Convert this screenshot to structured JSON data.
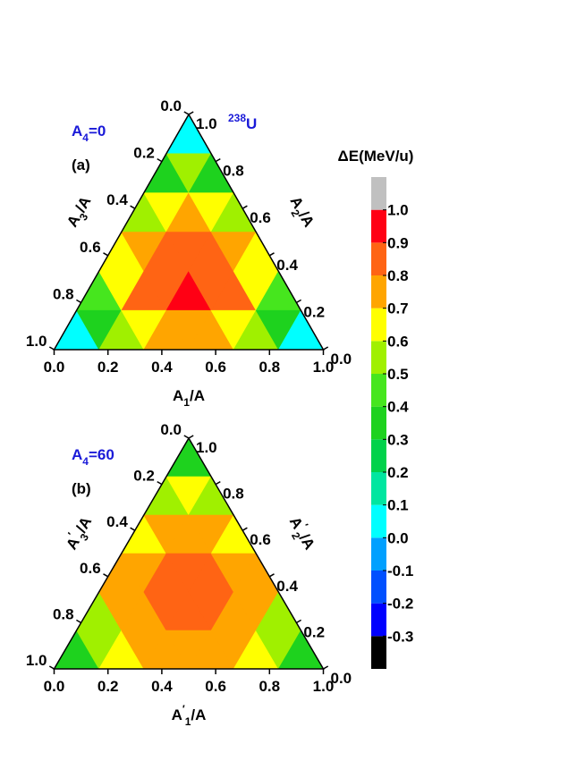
{
  "chart_data": [
    {
      "type": "ternary",
      "title": [
        {
          "text": "238",
          "shift": "sup"
        },
        {
          "text": "U"
        }
      ],
      "annotation": [
        {
          "text": "A"
        },
        {
          "text": "4",
          "shift": "sub"
        },
        {
          "text": "=0"
        }
      ],
      "annotation_color": "#1a1ad8",
      "panel_label": "(a)",
      "xlabel": [
        {
          "text": "A"
        },
        {
          "text": "1",
          "shift": "sub"
        },
        {
          "text": "/A"
        }
      ],
      "left_label": [
        {
          "text": "A"
        },
        {
          "text": "3",
          "shift": "sub"
        },
        {
          "text": "/A"
        }
      ],
      "right_label": [
        {
          "text": "A"
        },
        {
          "text": "2",
          "shift": "sub"
        },
        {
          "text": "/A"
        }
      ],
      "bottom_ticks": [
        {
          "value": 0,
          "label": "0.0"
        },
        0.2,
        0.4,
        0.6,
        0.8,
        {
          "value": 1,
          "label": "1.0"
        }
      ],
      "left_ticks": [
        {
          "value": 0,
          "label": "0.0"
        },
        0.2,
        0.4,
        0.6,
        0.8,
        {
          "value": 1,
          "label": "1.0"
        }
      ],
      "right_ticks": [
        {
          "value": 0,
          "label": "0.0"
        },
        0.2,
        0.4,
        0.6,
        0.8,
        {
          "value": 1,
          "label": "1.0"
        }
      ],
      "rows": [
        [
          0.0
        ],
        [
          0.3,
          0.5,
          0.3
        ],
        [
          0.5,
          0.65,
          0.7,
          0.65,
          0.5
        ],
        [
          0.6,
          0.75,
          0.8,
          0.85,
          0.8,
          0.75,
          0.6
        ],
        [
          0.4,
          0.65,
          0.8,
          0.85,
          0.9,
          0.85,
          0.8,
          0.65,
          0.4
        ],
        [
          0.0,
          0.3,
          0.55,
          0.65,
          0.7,
          0.75,
          0.7,
          0.65,
          0.55,
          0.3,
          0.0
        ]
      ]
    },
    {
      "type": "ternary",
      "annotation": [
        {
          "text": "A"
        },
        {
          "text": "4",
          "shift": "sub"
        },
        {
          "text": "=60"
        }
      ],
      "annotation_color": "#1a1ad8",
      "panel_label": "(b)",
      "xlabel": [
        {
          "text": "A"
        },
        {
          "text": "′",
          "shift": "sup"
        },
        {
          "text": "1",
          "shift": "sub"
        },
        {
          "text": "/A"
        }
      ],
      "left_label": [
        {
          "text": "A"
        },
        {
          "text": "′",
          "shift": "sup"
        },
        {
          "text": "3",
          "shift": "sub"
        },
        {
          "text": "/A"
        }
      ],
      "right_label": [
        {
          "text": "A"
        },
        {
          "text": "′",
          "shift": "sup"
        },
        {
          "text": "2",
          "shift": "sub"
        },
        {
          "text": "/A"
        }
      ],
      "bottom_ticks": [
        {
          "value": 0,
          "label": "0.0"
        },
        0.2,
        0.4,
        0.6,
        0.8,
        {
          "value": 1,
          "label": "1.0"
        }
      ],
      "left_ticks": [
        {
          "value": 0,
          "label": "0.0"
        },
        0.2,
        0.4,
        0.6,
        0.8,
        {
          "value": 1,
          "label": "1.0"
        }
      ],
      "right_ticks": [
        {
          "value": 0,
          "label": "0.0"
        },
        0.2,
        0.4,
        0.6,
        0.8,
        {
          "value": 1,
          "label": "1.0"
        }
      ],
      "rows": [
        [
          0.3
        ],
        [
          0.5,
          0.6,
          0.5
        ],
        [
          0.65,
          0.72,
          0.75,
          0.72,
          0.65
        ],
        [
          0.7,
          0.75,
          0.8,
          0.82,
          0.8,
          0.75,
          0.7
        ],
        [
          0.55,
          0.72,
          0.78,
          0.8,
          0.85,
          0.8,
          0.78,
          0.72,
          0.55
        ],
        [
          0.35,
          0.5,
          0.62,
          0.7,
          0.75,
          0.78,
          0.75,
          0.7,
          0.62,
          0.5,
          0.35
        ]
      ]
    }
  ],
  "colorbar": {
    "title": "ΔE(MeV/u)",
    "clim": [
      -0.4,
      1.1
    ],
    "ticks": [
      -0.3,
      -0.2,
      -0.1,
      {
        "value": 0,
        "label": "0.0"
      },
      0.1,
      0.2,
      0.3,
      0.4,
      0.5,
      0.6,
      0.7,
      0.8,
      0.9,
      {
        "value": 1,
        "label": "1.0"
      }
    ],
    "colors": [
      "#000000",
      "#0000ff",
      "#0050ff",
      "#00a0ff",
      "#00ffff",
      "#00e6a0",
      "#00d24b",
      "#1ed21e",
      "#46e61e",
      "#a0f000",
      "#ffff00",
      "#ffa500",
      "#ff6414",
      "#ff0014",
      "#c0c0c0"
    ]
  }
}
